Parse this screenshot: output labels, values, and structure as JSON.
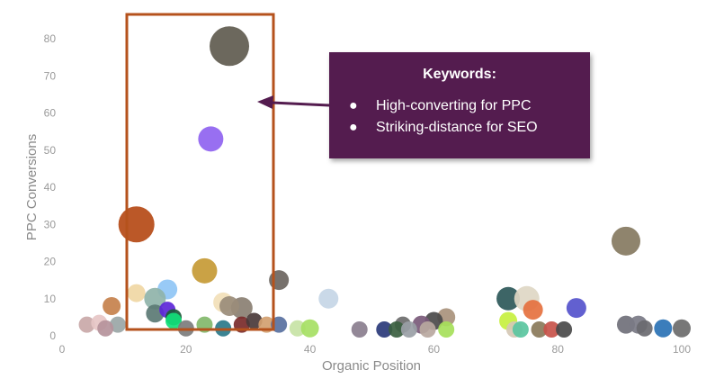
{
  "chart_data": {
    "type": "scatter",
    "xlabel": "Organic Position",
    "ylabel": "PPC Conversions",
    "xlim": [
      0,
      100
    ],
    "ylim": [
      0,
      80
    ],
    "x_ticks": [
      "0",
      "20",
      "40",
      "60",
      "80",
      "100"
    ],
    "y_ticks": [
      "0",
      "10",
      "20",
      "30",
      "40",
      "50",
      "60",
      "70",
      "80"
    ],
    "grid": false,
    "points": [
      {
        "x": 27,
        "y": 78,
        "r": 22,
        "color": "#5f5b4f"
      },
      {
        "x": 24,
        "y": 53,
        "r": 14,
        "color": "#8f63f0"
      },
      {
        "x": 12,
        "y": 30,
        "r": 20,
        "color": "#b54a16"
      },
      {
        "x": 23,
        "y": 17.5,
        "r": 14,
        "color": "#c59a35"
      },
      {
        "x": 91,
        "y": 25.5,
        "r": 16,
        "color": "#857a61"
      },
      {
        "x": 35,
        "y": 15,
        "r": 11,
        "color": "#6b6560"
      },
      {
        "x": 12,
        "y": 11.5,
        "r": 10,
        "color": "#f0d7a4"
      },
      {
        "x": 17,
        "y": 12.5,
        "r": 11,
        "color": "#8fc6f5"
      },
      {
        "x": 15,
        "y": 10,
        "r": 12,
        "color": "#8fb3a9"
      },
      {
        "x": 8,
        "y": 8,
        "r": 10,
        "color": "#c6814c"
      },
      {
        "x": 43,
        "y": 10,
        "r": 11,
        "color": "#c6d6e6"
      },
      {
        "x": 26,
        "y": 9,
        "r": 11,
        "color": "#f2dfb9"
      },
      {
        "x": 29,
        "y": 7.5,
        "r": 12,
        "color": "#8a7f72"
      },
      {
        "x": 27,
        "y": 8,
        "r": 11,
        "color": "#9a8c7a"
      },
      {
        "x": 15,
        "y": 6,
        "r": 10,
        "color": "#5b7a74"
      },
      {
        "x": 17,
        "y": 7,
        "r": 9,
        "color": "#5c26d8"
      },
      {
        "x": 18,
        "y": 5,
        "r": 9,
        "color": "#1c5a3a"
      },
      {
        "x": 18,
        "y": 4,
        "r": 9,
        "color": "#11e07a"
      },
      {
        "x": 72,
        "y": 10,
        "r": 13,
        "color": "#2c5859"
      },
      {
        "x": 75,
        "y": 10,
        "r": 14,
        "color": "#ded7c4"
      },
      {
        "x": 76,
        "y": 7,
        "r": 11,
        "color": "#e5713f"
      },
      {
        "x": 83,
        "y": 7.5,
        "r": 11,
        "color": "#5552cc"
      },
      {
        "x": 72,
        "y": 4,
        "r": 10,
        "color": "#c7f040"
      },
      {
        "x": 62,
        "y": 5,
        "r": 10,
        "color": "#a9927c"
      },
      {
        "x": 60,
        "y": 4,
        "r": 10,
        "color": "#4a4a4a"
      },
      {
        "x": 55,
        "y": 3,
        "r": 9,
        "color": "#6c6c6c"
      },
      {
        "x": 58,
        "y": 3,
        "r": 10,
        "color": "#7a5a7a"
      },
      {
        "x": 4,
        "y": 3,
        "r": 9,
        "color": "#c9a8a8"
      },
      {
        "x": 6,
        "y": 3.5,
        "r": 9,
        "color": "#e6c6c6"
      },
      {
        "x": 9,
        "y": 3,
        "r": 9,
        "color": "#9aa6a6"
      },
      {
        "x": 7,
        "y": 2,
        "r": 9,
        "color": "#b5939b"
      },
      {
        "x": 20,
        "y": 2,
        "r": 9,
        "color": "#7c7c7c"
      },
      {
        "x": 23,
        "y": 3,
        "r": 9,
        "color": "#82b86b"
      },
      {
        "x": 26,
        "y": 2,
        "r": 9,
        "color": "#2a7a8a"
      },
      {
        "x": 29,
        "y": 3,
        "r": 9,
        "color": "#7a2a2a"
      },
      {
        "x": 31,
        "y": 4,
        "r": 9,
        "color": "#4a3a3a"
      },
      {
        "x": 33,
        "y": 3,
        "r": 9,
        "color": "#d2a070"
      },
      {
        "x": 35,
        "y": 3,
        "r": 9,
        "color": "#5870a0"
      },
      {
        "x": 38,
        "y": 2,
        "r": 9,
        "color": "#c7e3a5"
      },
      {
        "x": 40,
        "y": 2,
        "r": 10,
        "color": "#a6e064"
      },
      {
        "x": 48,
        "y": 1,
        "r": 9,
        "color": "#8a7e8e"
      },
      {
        "x": 52,
        "y": 1,
        "r": 9,
        "color": "#2a3a7a"
      },
      {
        "x": 54,
        "y": 1.5,
        "r": 9,
        "color": "#3b6040"
      },
      {
        "x": 56,
        "y": 1,
        "r": 9,
        "color": "#9a9fa6"
      },
      {
        "x": 59,
        "y": 1,
        "r": 9,
        "color": "#b9a8a0"
      },
      {
        "x": 62,
        "y": 1,
        "r": 9,
        "color": "#a6e05a"
      },
      {
        "x": 73,
        "y": 1,
        "r": 9,
        "color": "#d5c8b5"
      },
      {
        "x": 74,
        "y": 0.5,
        "r": 9,
        "color": "#5ac6a0"
      },
      {
        "x": 77,
        "y": 1,
        "r": 9,
        "color": "#8a7a5a"
      },
      {
        "x": 79,
        "y": 1,
        "r": 9,
        "color": "#c8524a"
      },
      {
        "x": 81,
        "y": 1,
        "r": 9,
        "color": "#4a4a4a"
      },
      {
        "x": 91,
        "y": 3,
        "r": 10,
        "color": "#70707a"
      },
      {
        "x": 93,
        "y": 3,
        "r": 10,
        "color": "#7a7a85"
      },
      {
        "x": 94,
        "y": 2,
        "r": 9,
        "color": "#6a6a70"
      },
      {
        "x": 97,
        "y": 2,
        "r": 10,
        "color": "#2a72b5"
      },
      {
        "x": 100,
        "y": 2,
        "r": 10,
        "color": "#6b6b6b"
      }
    ]
  },
  "highlight_box_color": "#b5521c",
  "arrow_color": "#541c4f",
  "callout": {
    "title": "Keywords:",
    "bullet": "●",
    "items": [
      "High-converting for PPC",
      "Striking-distance for SEO"
    ],
    "background": "#541c4f"
  }
}
